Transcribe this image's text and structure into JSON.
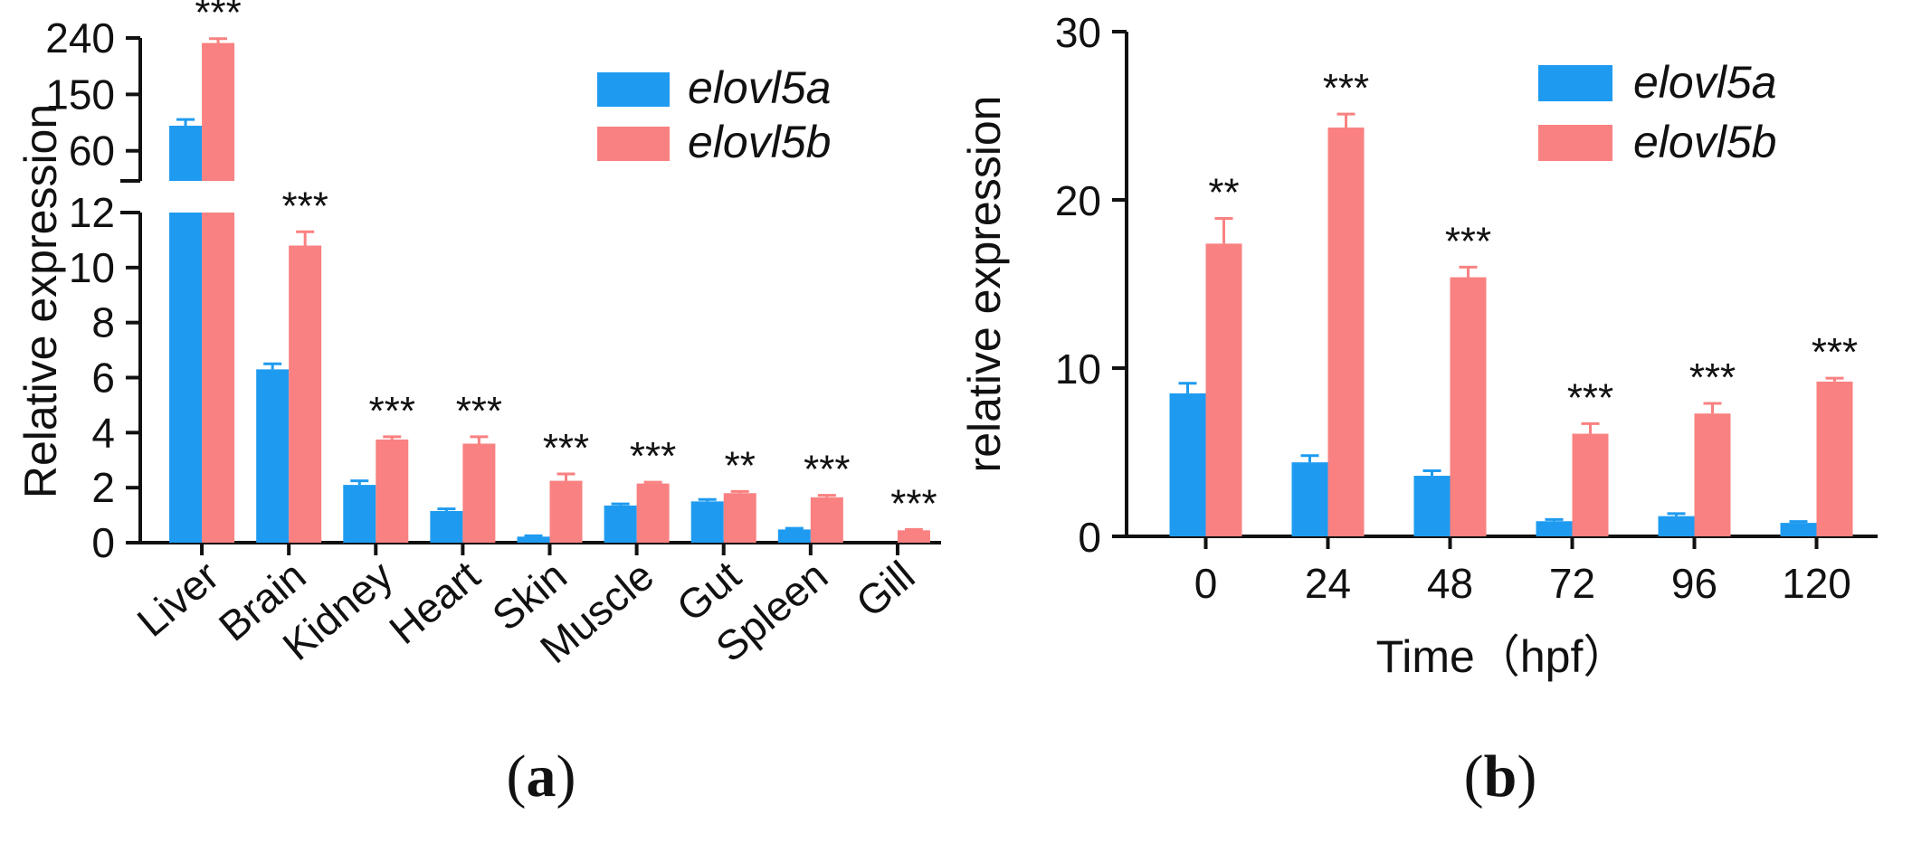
{
  "colors": {
    "elovl5a": "#1E9BF0",
    "elovl5b": "#F98181",
    "axis": "#111111"
  },
  "panel_labels": {
    "a": {
      "open": "(",
      "letter": "a",
      "close": ")"
    },
    "b": {
      "open": "(",
      "letter": "b",
      "close": ")"
    }
  },
  "chart_data": [
    {
      "id": "a",
      "type": "bar",
      "title": "",
      "xlabel": "",
      "ylabel": "Relative expression",
      "categories": [
        "Liver",
        "Brain",
        "Kidney",
        "Heart",
        "Skin",
        "Muscle",
        "Gut",
        "Spleen",
        "Gill"
      ],
      "series": [
        {
          "name": "elovl5a",
          "values": [
            100,
            6.3,
            2.1,
            1.15,
            0.22,
            1.35,
            1.5,
            0.48,
            0
          ],
          "errors": [
            10,
            0.2,
            0.15,
            0.08,
            0.03,
            0.06,
            0.07,
            0.04,
            0
          ]
        },
        {
          "name": "elovl5b",
          "values": [
            232,
            10.8,
            3.75,
            3.6,
            2.25,
            2.15,
            1.8,
            1.65,
            0.45
          ],
          "errors": [
            7,
            0.5,
            0.1,
            0.25,
            0.25,
            0.05,
            0.06,
            0.07,
            0.03
          ]
        }
      ],
      "significance": [
        "***",
        "***",
        "***",
        "***",
        "***",
        "***",
        "**",
        "***",
        "***"
      ],
      "y_axis_broken": true,
      "ylim_lower": [
        0,
        12
      ],
      "yticks_lower": [
        "0",
        "2",
        "4",
        "6",
        "8",
        "10",
        "12"
      ],
      "ylim_upper": [
        12,
        240
      ],
      "yticks_upper": [
        "60",
        "150",
        "240"
      ],
      "legend": {
        "position": "top-right",
        "entries": [
          "elovl5a",
          "elovl5b"
        ]
      },
      "grid": false
    },
    {
      "id": "b",
      "type": "bar",
      "title": "",
      "xlabel": "Time（hpf）",
      "ylabel": "relative expression",
      "categories": [
        "0",
        "24",
        "48",
        "72",
        "96",
        "120"
      ],
      "series": [
        {
          "name": "elovl5a",
          "values": [
            8.5,
            4.4,
            3.6,
            0.9,
            1.2,
            0.8
          ],
          "errors": [
            0.6,
            0.4,
            0.3,
            0.1,
            0.15,
            0.08
          ]
        },
        {
          "name": "elovl5b",
          "values": [
            17.4,
            24.3,
            15.4,
            6.1,
            7.3,
            9.2
          ],
          "errors": [
            1.5,
            0.8,
            0.6,
            0.6,
            0.6,
            0.2
          ]
        }
      ],
      "significance": [
        "**",
        "***",
        "***",
        "***",
        "***",
        "***"
      ],
      "ylim": [
        0,
        30
      ],
      "yticks": [
        "0",
        "10",
        "20",
        "30"
      ],
      "legend": {
        "position": "top-right",
        "entries": [
          "elovl5a",
          "elovl5b"
        ]
      },
      "grid": false
    }
  ]
}
